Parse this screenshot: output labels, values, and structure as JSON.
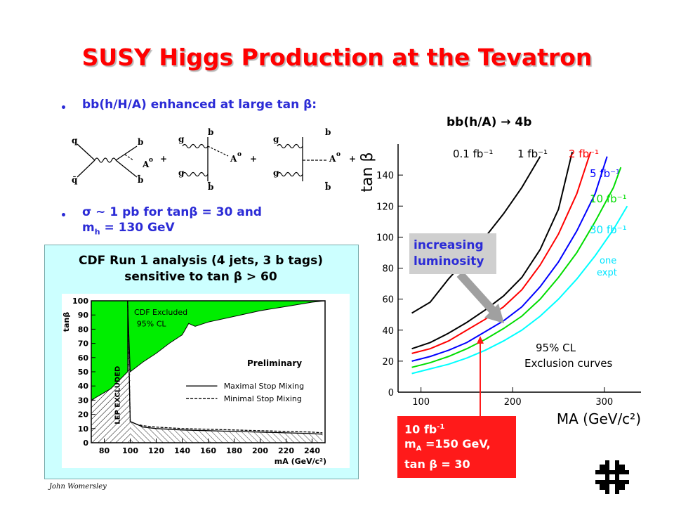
{
  "title": "SUSY Higgs Production at the Tevatron",
  "bullets": [
    {
      "text": "bb(h/H/A) enhanced at large tan β:"
    },
    {
      "line1": "σ ~ 1 pb for tanβ = 30 and",
      "line2_pre": "m",
      "line2_sub": "h",
      "line2_post": " = 130 GeV"
    }
  ],
  "feynman": {
    "labels": {
      "q": "q",
      "qbar": "q̄",
      "b": "b",
      "bbar": "b̄",
      "g": "g",
      "A0": "A",
      "zero": "o",
      "plus": "+"
    }
  },
  "cdf": {
    "caption_line1": "CDF Run 1 analysis (4 jets, 3 b tags)",
    "caption_line2": "sensitive to tan β > 60",
    "chart_data": {
      "type": "line",
      "ylabel": "tanβ",
      "xlabel": "mA (GeV/c²)",
      "xlim": [
        70,
        250
      ],
      "ylim": [
        0,
        100
      ],
      "x_ticks": [
        80,
        100,
        120,
        140,
        160,
        180,
        200,
        220,
        240
      ],
      "y_ticks": [
        0,
        10,
        20,
        30,
        40,
        50,
        60,
        70,
        80,
        90,
        100
      ],
      "annotations": [
        "CDF Excluded",
        "95% CL",
        "LEP EXCLUDED",
        "Preliminary"
      ],
      "legend": [
        {
          "name": "Maximal Stop Mixing",
          "style": "solid"
        },
        {
          "name": "Minimal Stop Mixing",
          "style": "dashed"
        }
      ],
      "series": [
        {
          "name": "CDF excluded (upper boundary of allowed region)",
          "x": [
            98,
            100,
            110,
            120,
            130,
            140,
            145,
            150,
            160,
            180,
            200,
            220,
            240,
            250
          ],
          "y": [
            100,
            50,
            57,
            63,
            70,
            76,
            84,
            82,
            85,
            89,
            93,
            96,
            99,
            100
          ]
        },
        {
          "name": "Maximal Stop Mixing",
          "x": [
            98,
            100,
            105,
            110,
            120,
            140,
            160,
            180,
            200,
            220,
            240,
            248
          ],
          "y": [
            100,
            15,
            13,
            11,
            10,
            9,
            8.5,
            8,
            7.5,
            7,
            6.5,
            6
          ]
        },
        {
          "name": "Minimal Stop Mixing",
          "x": [
            98,
            100,
            105,
            110,
            120,
            140,
            160,
            180,
            200,
            220,
            240,
            248
          ],
          "y": [
            100,
            15,
            13,
            12,
            11,
            10,
            9.5,
            9,
            8.5,
            8,
            7.5,
            7
          ]
        }
      ]
    }
  },
  "right": {
    "title": "bb(h/A) → 4b",
    "lumi_line1": "increasing",
    "lumi_line2": "luminosity",
    "redbox_line1": "10 fb",
    "redbox_line1_sup": "-1",
    "redbox_line2_pre": "m",
    "redbox_line2_sub": "A",
    "redbox_line2_post": " =150 GeV,",
    "redbox_line3": "tan β = 30",
    "chart_data": {
      "type": "line",
      "ylabel": "tan β",
      "xlabel": "MA (GeV/c²)",
      "xlim": [
        75,
        340
      ],
      "ylim": [
        0,
        160
      ],
      "x_ticks": [
        100,
        200,
        300
      ],
      "y_ticks": [
        0,
        20,
        40,
        60,
        80,
        100,
        120,
        140
      ],
      "annotations": [
        "95% CL",
        "Exclusion curves",
        "one",
        "expt"
      ],
      "series": [
        {
          "name": "0.1 fb⁻¹",
          "color": "#000000",
          "x": [
            90,
            110,
            130,
            150,
            170,
            190,
            210,
            230
          ],
          "y": [
            51,
            58,
            73,
            86,
            100,
            115,
            132,
            152
          ]
        },
        {
          "name": "1 fb⁻¹",
          "color": "#000000",
          "x": [
            90,
            110,
            130,
            150,
            170,
            190,
            210,
            230,
            250,
            265
          ],
          "y": [
            28,
            32,
            38,
            45,
            53,
            62,
            74,
            92,
            118,
            155
          ]
        },
        {
          "name": "2 fb⁻¹",
          "color": "#ff0000",
          "x": [
            90,
            110,
            130,
            150,
            170,
            190,
            210,
            230,
            250,
            270,
            285
          ],
          "y": [
            25,
            28,
            33,
            40,
            47,
            55,
            66,
            82,
            102,
            128,
            155
          ]
        },
        {
          "name": "5 fb⁻¹",
          "color": "#0000ff",
          "x": [
            90,
            110,
            130,
            150,
            170,
            190,
            210,
            230,
            250,
            270,
            290,
            303
          ],
          "y": [
            20,
            23,
            27,
            32,
            39,
            46,
            55,
            68,
            84,
            104,
            128,
            152
          ]
        },
        {
          "name": "10 fb⁻¹",
          "color": "#00dd00",
          "x": [
            90,
            110,
            130,
            150,
            170,
            190,
            210,
            230,
            250,
            270,
            290,
            310,
            318
          ],
          "y": [
            16,
            19,
            23,
            28,
            34,
            41,
            49,
            60,
            74,
            90,
            110,
            132,
            145
          ]
        },
        {
          "name": "30 fb⁻¹",
          "color": "#00ffff",
          "x": [
            90,
            110,
            130,
            150,
            170,
            190,
            210,
            230,
            250,
            270,
            290,
            310,
            325
          ],
          "y": [
            12,
            15,
            18,
            22,
            27,
            33,
            40,
            49,
            60,
            73,
            88,
            105,
            120
          ]
        }
      ]
    }
  },
  "footer": {
    "author": "John Womersley",
    "logo_icon": "fermilab-logo"
  }
}
